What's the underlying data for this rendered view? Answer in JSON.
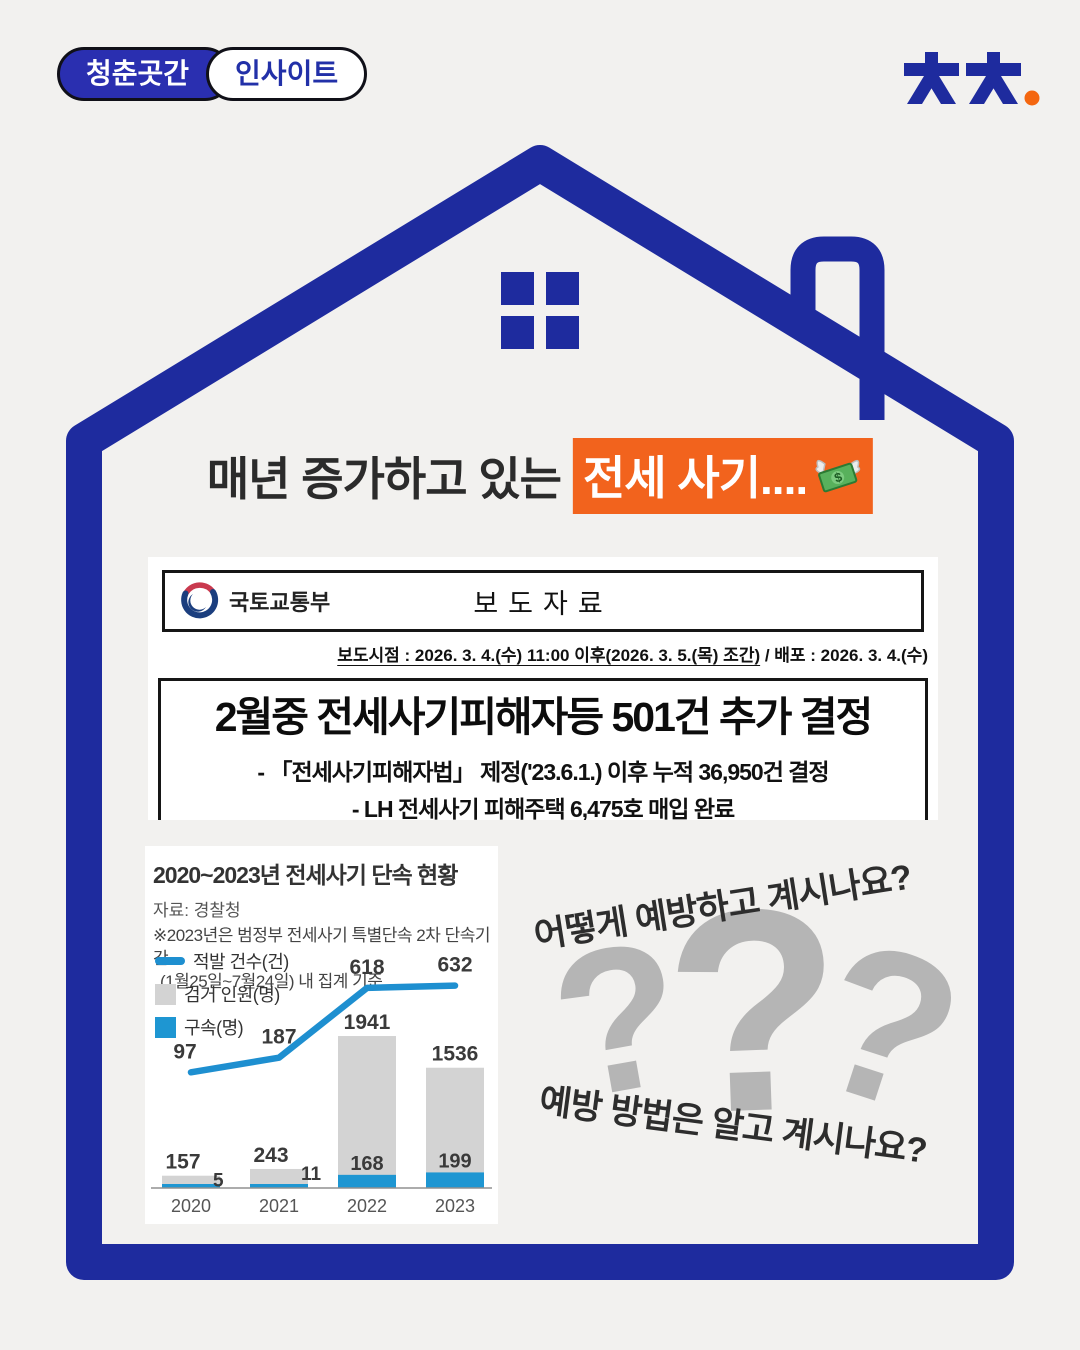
{
  "page": {
    "bg_color": "#F2F1EF",
    "navy": "#1E2B9E",
    "orange": "#F2631D"
  },
  "header": {
    "badge_primary": "청춘곳간",
    "badge_secondary": "인사이트",
    "logo_dot_color": "#F4660F"
  },
  "title": {
    "prefix": "매년 증가하고 있는",
    "highlight": "전세 사기....",
    "emoji_icon": "money-with-wings"
  },
  "press_release": {
    "org": "국토교통부",
    "doc_type": "보도자료",
    "timing_underlined": "보도시점 : 2026. 3. 4.(수) 11:00 이후(2026. 3. 5.(목) 조간)",
    "timing_rest": " / 배포 : 2026. 3. 4.(수)",
    "headline": "2월중 전세사기피해자등 501건 추가 결정",
    "bullets": [
      "- 「전세사기피해자법」 제정('23.6.1.) 이후 누적 36,950건 결정",
      "- LH 전세사기 피해주택 6,475호 매입 완료"
    ]
  },
  "chart_data": {
    "type": "bar",
    "subtype": "grouped bars with overlaid line",
    "title": "2020~2023년 전세사기 단속 현황",
    "source": "자료: 경찰청",
    "note_lines": [
      "※2023년은 범정부 전세사기 특별단속 2차 단속기간",
      "(1월25일~7월24일) 내 집계 기준"
    ],
    "categories": [
      "2020",
      "2021",
      "2022",
      "2023"
    ],
    "series": [
      {
        "name": "적발 건수(건)",
        "type": "line",
        "color": "#1E8FD0",
        "values": [
          97,
          187,
          618,
          632
        ]
      },
      {
        "name": "검거 인원(명)",
        "type": "bar",
        "color": "#D3D3D3",
        "values": [
          157,
          243,
          1941,
          1536
        ]
      },
      {
        "name": "구속(명)",
        "type": "bar",
        "color": "#1E96D2",
        "values": [
          5,
          11,
          168,
          199
        ]
      }
    ],
    "xlabel": "",
    "ylabel": "",
    "ylim_bars": [
      0,
      2000
    ],
    "grid": false,
    "legend_position": "top-left"
  },
  "questions": {
    "q1": "어떻게 예방하고 계시나요?",
    "q2": "예방 방법은 알고 계시나요?",
    "marks": [
      "?",
      "?",
      "?"
    ]
  }
}
